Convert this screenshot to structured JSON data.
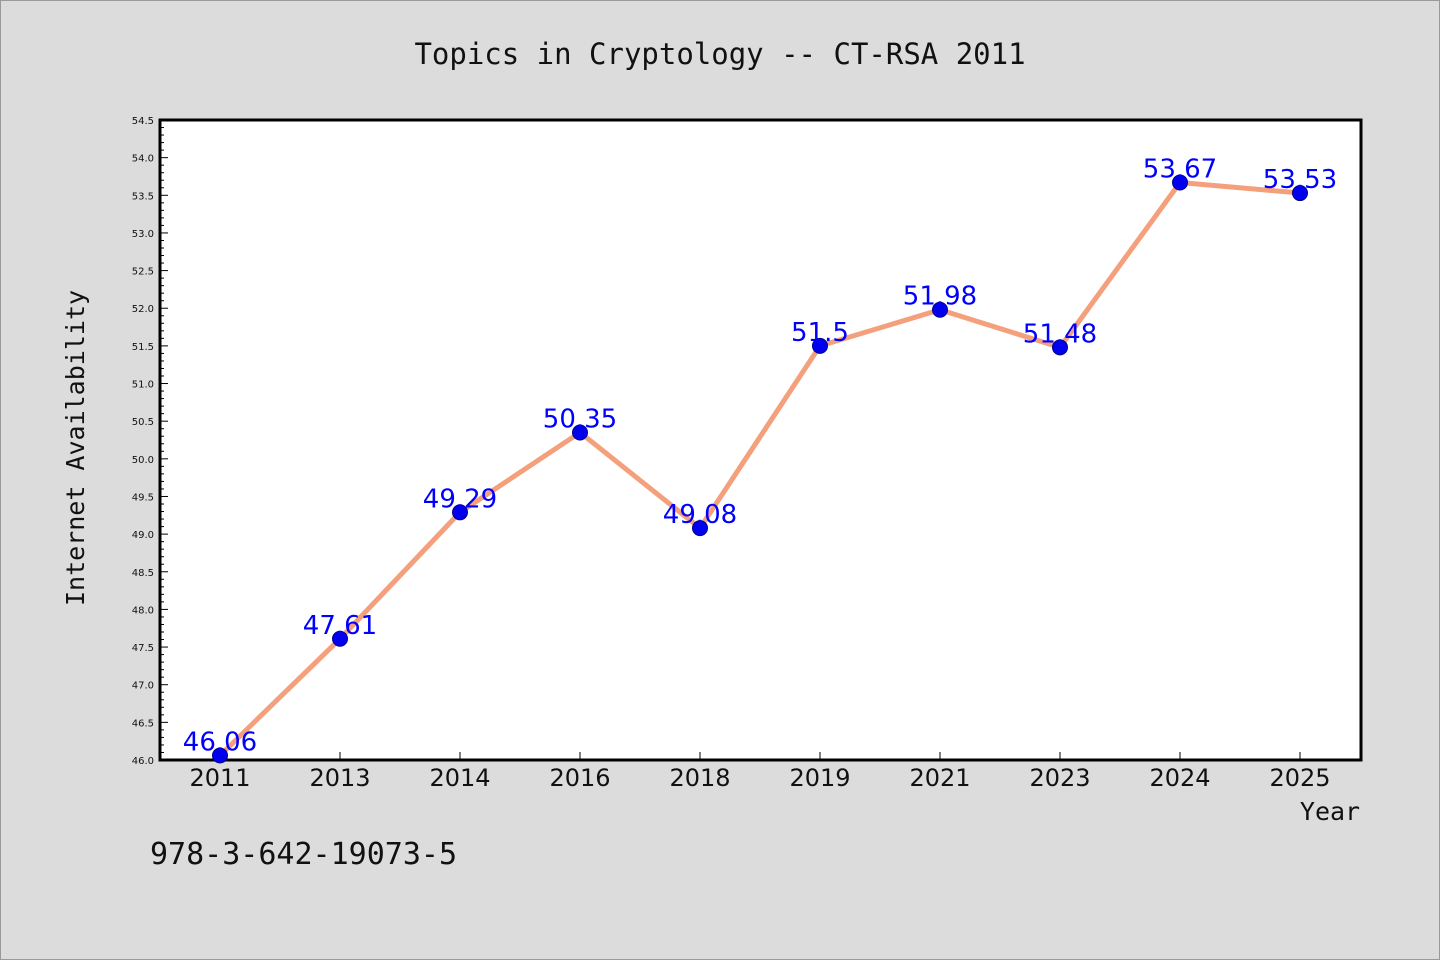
{
  "chart_data": {
    "type": "line",
    "title": "Topics in Cryptology -- CT-RSA 2011",
    "xlabel": "Year",
    "ylabel": "Internet Availability",
    "categories": [
      "2011",
      "2013",
      "2014",
      "2016",
      "2018",
      "2019",
      "2021",
      "2023",
      "2024",
      "2025"
    ],
    "series": [
      {
        "values": [
          46.06,
          47.61,
          49.29,
          50.35,
          49.08,
          51.5,
          51.98,
          51.48,
          53.67,
          53.53
        ]
      }
    ],
    "data_labels": [
      "46.06",
      "47.61",
      "49.29",
      "50.35",
      "49.08",
      "51.5",
      "51.98",
      "51.48",
      "53.67",
      "53.53"
    ],
    "ylim": [
      46.0,
      54.5
    ],
    "yticks": [
      "46.0",
      "46.5",
      "47.0",
      "47.5",
      "48.0",
      "48.5",
      "49.0",
      "49.5",
      "50.0",
      "50.5",
      "51.0",
      "51.5",
      "52.0",
      "52.5",
      "53.0",
      "53.5",
      "54.0",
      "54.5"
    ],
    "grid": false,
    "legend": "none",
    "colors": {
      "line": "#f4a07c",
      "marker": "#0000ee",
      "label": "#0000ff",
      "background": "#dcdcdc",
      "plot_area": "#ffffff"
    }
  },
  "footer": {
    "isbn": "978-3-642-19073-5"
  }
}
